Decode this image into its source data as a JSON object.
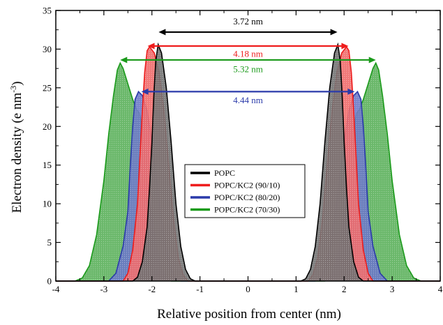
{
  "chart_data": {
    "type": "area",
    "xlabel": "Relative position from center (nm)",
    "ylabel_main": "Electron density (e nm",
    "ylabel_sup": "-3",
    "ylabel_end": ")",
    "xlim": [
      -4,
      4
    ],
    "ylim": [
      0,
      35
    ],
    "xticks": [
      -4,
      -3,
      -2,
      -1,
      0,
      1,
      2,
      3,
      4
    ],
    "xtick_labels": [
      "-4",
      "-3",
      "-2",
      "-1",
      "0",
      "1",
      "2",
      "3",
      "4"
    ],
    "yticks": [
      0,
      5,
      10,
      15,
      20,
      25,
      30,
      35
    ],
    "ytick_labels": [
      "0",
      "5",
      "10",
      "15",
      "20",
      "25",
      "30",
      "35"
    ],
    "series": [
      {
        "name": "POPC/KC2 (70/30)",
        "color": "#1a9a1a",
        "fill": "#5bb05b",
        "points": [
          [
            -4,
            0
          ],
          [
            -3.6,
            0
          ],
          [
            -3.45,
            0.4
          ],
          [
            -3.3,
            2
          ],
          [
            -3.15,
            6
          ],
          [
            -3.0,
            13
          ],
          [
            -2.9,
            19
          ],
          [
            -2.8,
            24
          ],
          [
            -2.72,
            27.3
          ],
          [
            -2.66,
            28.2
          ],
          [
            -2.6,
            27.5
          ],
          [
            -2.5,
            25.5
          ],
          [
            -2.4,
            23.5
          ],
          [
            -2.32,
            22.2
          ],
          [
            -2.26,
            21.7
          ],
          [
            -2.2,
            20
          ],
          [
            -2.1,
            15
          ],
          [
            -2.0,
            9
          ],
          [
            -1.9,
            4.5
          ],
          [
            -1.8,
            1.8
          ],
          [
            -1.7,
            0.5
          ],
          [
            -1.6,
            0
          ],
          [
            1.6,
            0
          ],
          [
            1.7,
            0.5
          ],
          [
            1.8,
            1.8
          ],
          [
            1.9,
            4.5
          ],
          [
            2.0,
            9
          ],
          [
            2.1,
            15
          ],
          [
            2.2,
            20
          ],
          [
            2.26,
            21.7
          ],
          [
            2.32,
            22.2
          ],
          [
            2.4,
            23.5
          ],
          [
            2.5,
            25.5
          ],
          [
            2.6,
            27.5
          ],
          [
            2.66,
            28.2
          ],
          [
            2.72,
            27.3
          ],
          [
            2.8,
            24
          ],
          [
            2.9,
            19
          ],
          [
            3.0,
            13
          ],
          [
            3.15,
            6
          ],
          [
            3.3,
            2
          ],
          [
            3.45,
            0.4
          ],
          [
            3.6,
            0
          ],
          [
            4,
            0
          ]
        ]
      },
      {
        "name": "POPC/KC2 (80/20)",
        "color": "#2a3aaa",
        "fill": "#6a78c6",
        "points": [
          [
            -4,
            0
          ],
          [
            -2.9,
            0
          ],
          [
            -2.75,
            1
          ],
          [
            -2.6,
            4.5
          ],
          [
            -2.5,
            9
          ],
          [
            -2.45,
            15
          ],
          [
            -2.4,
            20
          ],
          [
            -2.35,
            23.5
          ],
          [
            -2.28,
            24.5
          ],
          [
            -2.2,
            24
          ],
          [
            -2.1,
            22
          ],
          [
            -2.0,
            18
          ],
          [
            -1.9,
            13
          ],
          [
            -1.8,
            8
          ],
          [
            -1.7,
            4
          ],
          [
            -1.6,
            1.5
          ],
          [
            -1.5,
            0.3
          ],
          [
            -1.4,
            0
          ],
          [
            1.4,
            0
          ],
          [
            1.5,
            0.3
          ],
          [
            1.6,
            1.5
          ],
          [
            1.7,
            4
          ],
          [
            1.8,
            8
          ],
          [
            1.9,
            13
          ],
          [
            2.0,
            18
          ],
          [
            2.1,
            22
          ],
          [
            2.2,
            24
          ],
          [
            2.28,
            24.5
          ],
          [
            2.35,
            23.5
          ],
          [
            2.4,
            20
          ],
          [
            2.45,
            15
          ],
          [
            2.5,
            9
          ],
          [
            2.6,
            4.5
          ],
          [
            2.75,
            1
          ],
          [
            2.9,
            0
          ],
          [
            4,
            0
          ]
        ]
      },
      {
        "name": "POPC/KC2 (90/10)",
        "color": "#ee1c1c",
        "fill": "#f06a6a",
        "points": [
          [
            -4,
            0
          ],
          [
            -2.6,
            0
          ],
          [
            -2.5,
            1
          ],
          [
            -2.4,
            4
          ],
          [
            -2.3,
            10
          ],
          [
            -2.25,
            16
          ],
          [
            -2.2,
            22
          ],
          [
            -2.15,
            27
          ],
          [
            -2.1,
            29.8
          ],
          [
            -2.05,
            30.3
          ],
          [
            -1.95,
            29.5
          ],
          [
            -1.85,
            27
          ],
          [
            -1.75,
            22
          ],
          [
            -1.65,
            15
          ],
          [
            -1.55,
            8
          ],
          [
            -1.45,
            3
          ],
          [
            -1.35,
            0.8
          ],
          [
            -1.25,
            0
          ],
          [
            1.25,
            0
          ],
          [
            1.35,
            0.8
          ],
          [
            1.45,
            3
          ],
          [
            1.55,
            8
          ],
          [
            1.65,
            15
          ],
          [
            1.75,
            22
          ],
          [
            1.85,
            27
          ],
          [
            1.95,
            29.5
          ],
          [
            2.05,
            30.3
          ],
          [
            2.1,
            29.8
          ],
          [
            2.15,
            27
          ],
          [
            2.2,
            22
          ],
          [
            2.25,
            16
          ],
          [
            2.3,
            10
          ],
          [
            2.4,
            4
          ],
          [
            2.5,
            1
          ],
          [
            2.6,
            0
          ],
          [
            4,
            0
          ]
        ]
      },
      {
        "name": "POPC",
        "color": "#000000",
        "fill": "#707070",
        "points": [
          [
            -4,
            0
          ],
          [
            -2.4,
            0
          ],
          [
            -2.3,
            0.5
          ],
          [
            -2.2,
            2.5
          ],
          [
            -2.1,
            7
          ],
          [
            -2.05,
            12
          ],
          [
            -2.0,
            18
          ],
          [
            -1.96,
            24
          ],
          [
            -1.92,
            28.5
          ],
          [
            -1.87,
            30.6
          ],
          [
            -1.8,
            29.5
          ],
          [
            -1.7,
            25
          ],
          [
            -1.6,
            18
          ],
          [
            -1.5,
            10
          ],
          [
            -1.4,
            4.5
          ],
          [
            -1.3,
            1.5
          ],
          [
            -1.2,
            0.3
          ],
          [
            -1.1,
            0
          ],
          [
            1.1,
            0
          ],
          [
            1.2,
            0.3
          ],
          [
            1.3,
            1.5
          ],
          [
            1.4,
            4.5
          ],
          [
            1.5,
            10
          ],
          [
            1.6,
            18
          ],
          [
            1.7,
            25
          ],
          [
            1.8,
            29.5
          ],
          [
            1.87,
            30.6
          ],
          [
            1.92,
            28.5
          ],
          [
            1.96,
            24
          ],
          [
            2.0,
            18
          ],
          [
            2.05,
            12
          ],
          [
            2.1,
            7
          ],
          [
            2.2,
            2.5
          ],
          [
            2.3,
            0.5
          ],
          [
            2.4,
            0
          ],
          [
            4,
            0
          ]
        ]
      }
    ],
    "legend_order": [
      "POPC",
      "POPC/KC2 (90/10)",
      "POPC/KC2 (80/20)",
      "POPC/KC2 (70/30)"
    ],
    "annotations": [
      {
        "text": "3.72 nm",
        "color": "#000000",
        "x1": -1.86,
        "x2": 1.86,
        "y_arrow": 32.2,
        "y_text": 33.2
      },
      {
        "text": "4.18 nm",
        "color": "#ee1c1c",
        "x1": -2.09,
        "x2": 2.09,
        "y_arrow": 30.4,
        "y_text": 29.0
      },
      {
        "text": "5.32 nm",
        "color": "#1a9a1a",
        "x1": -2.66,
        "x2": 2.66,
        "y_arrow": 28.6,
        "y_text": 27.0
      },
      {
        "text": "4.44 nm",
        "color": "#2a3aaa",
        "x1": -2.22,
        "x2": 2.22,
        "y_arrow": 24.5,
        "y_text": 23.0
      }
    ]
  }
}
